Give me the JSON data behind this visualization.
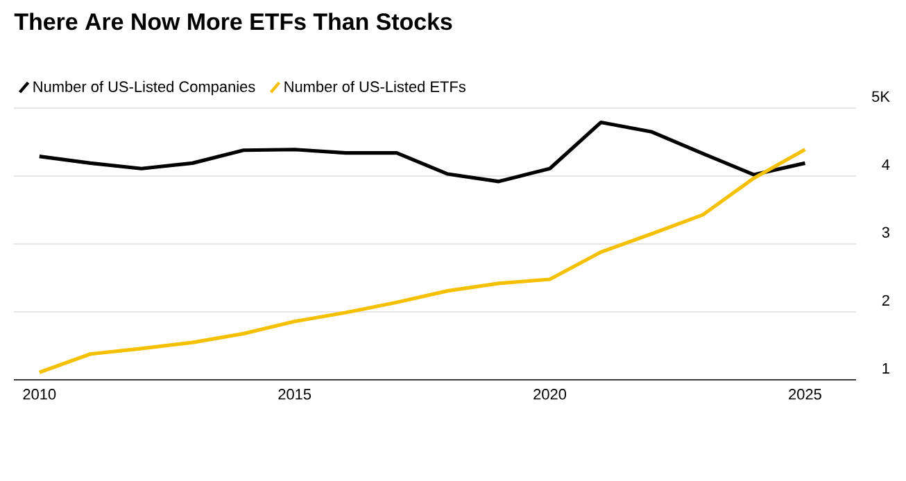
{
  "chart_data": {
    "type": "line",
    "title": "There Are Now More ETFs Than Stocks",
    "x": [
      2010,
      2011,
      2012,
      2013,
      2014,
      2015,
      2016,
      2017,
      2018,
      2019,
      2020,
      2021,
      2022,
      2023,
      2024,
      2025
    ],
    "series": [
      {
        "name": "Number of US-Listed Companies",
        "color": "#000000",
        "values": [
          4.29,
          4.19,
          4.11,
          4.19,
          4.38,
          4.39,
          4.34,
          4.34,
          4.03,
          3.92,
          4.11,
          4.79,
          4.65,
          4.33,
          4.02,
          4.19
        ]
      },
      {
        "name": "Number of US-Listed ETFs",
        "color": "#f5c000",
        "values": [
          1.11,
          1.38,
          1.46,
          1.55,
          1.68,
          1.86,
          1.99,
          2.14,
          2.31,
          2.42,
          2.48,
          2.88,
          3.15,
          3.43,
          3.97,
          4.39
        ]
      }
    ],
    "xlim": [
      2009.5,
      2026
    ],
    "xticks": [
      2010,
      2015,
      2020,
      2025
    ],
    "ylim": [
      1,
      5
    ],
    "yticks": [
      1,
      2,
      3,
      4,
      {
        "value": 5,
        "label": "5K"
      }
    ],
    "grid": "y",
    "legend": "top left",
    "marker": "none",
    "line_style": "solid"
  }
}
